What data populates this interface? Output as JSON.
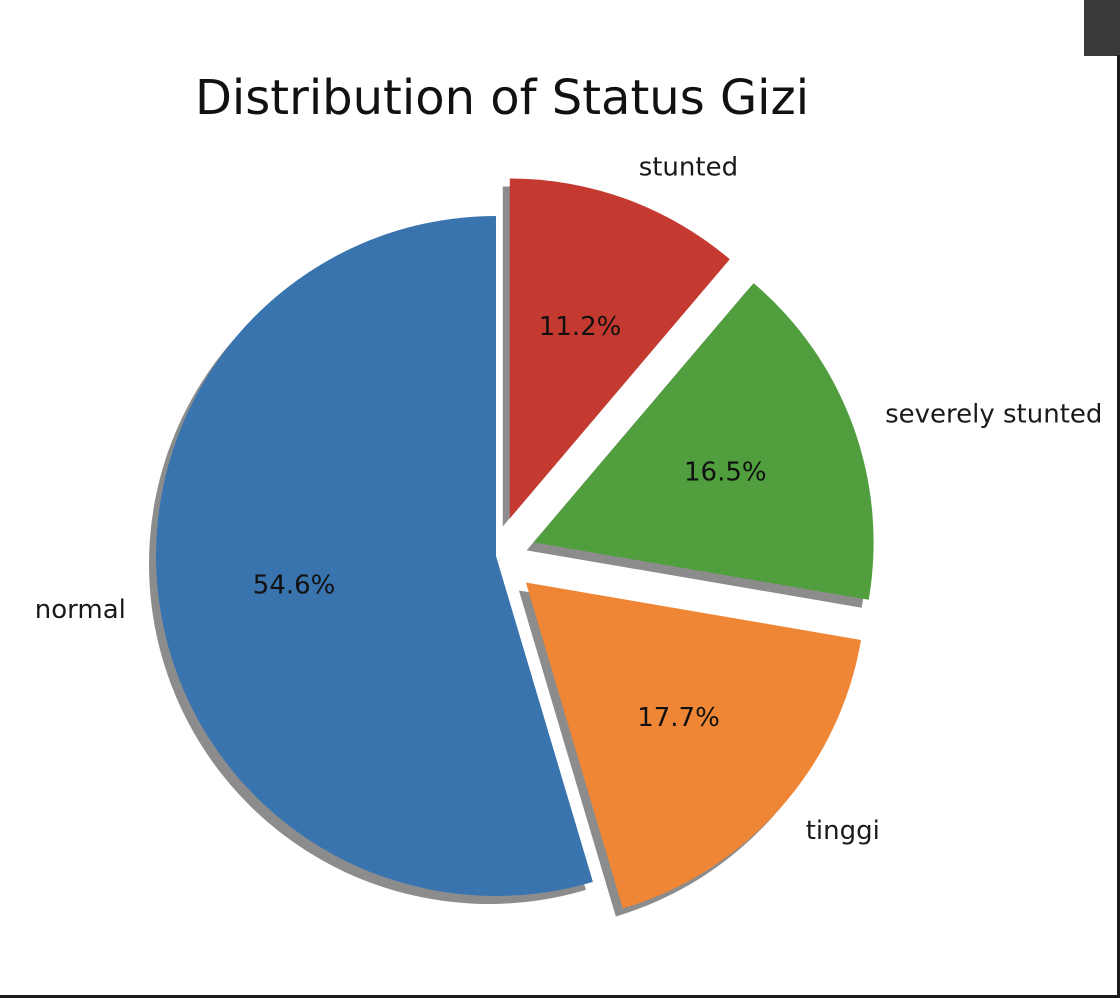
{
  "chart_data": {
    "type": "pie",
    "title": "Distribution of Status Gizi",
    "start_angle_deg": 90,
    "counterclock": true,
    "shadow": true,
    "slices": [
      {
        "label": "normal",
        "value": 54.6,
        "pct_label": "54.6%",
        "color": "#3a74ae",
        "explode": 0.0
      },
      {
        "label": "tinggi",
        "value": 17.7,
        "pct_label": "17.7%",
        "color": "#ee8635",
        "explode": 0.1
      },
      {
        "label": "severely stunted",
        "value": 16.5,
        "pct_label": "16.5%",
        "color": "#519e3e",
        "explode": 0.1
      },
      {
        "label": "stunted",
        "value": 11.2,
        "pct_label": "11.2%",
        "color": "#c43a31",
        "explode": 0.1
      }
    ]
  }
}
